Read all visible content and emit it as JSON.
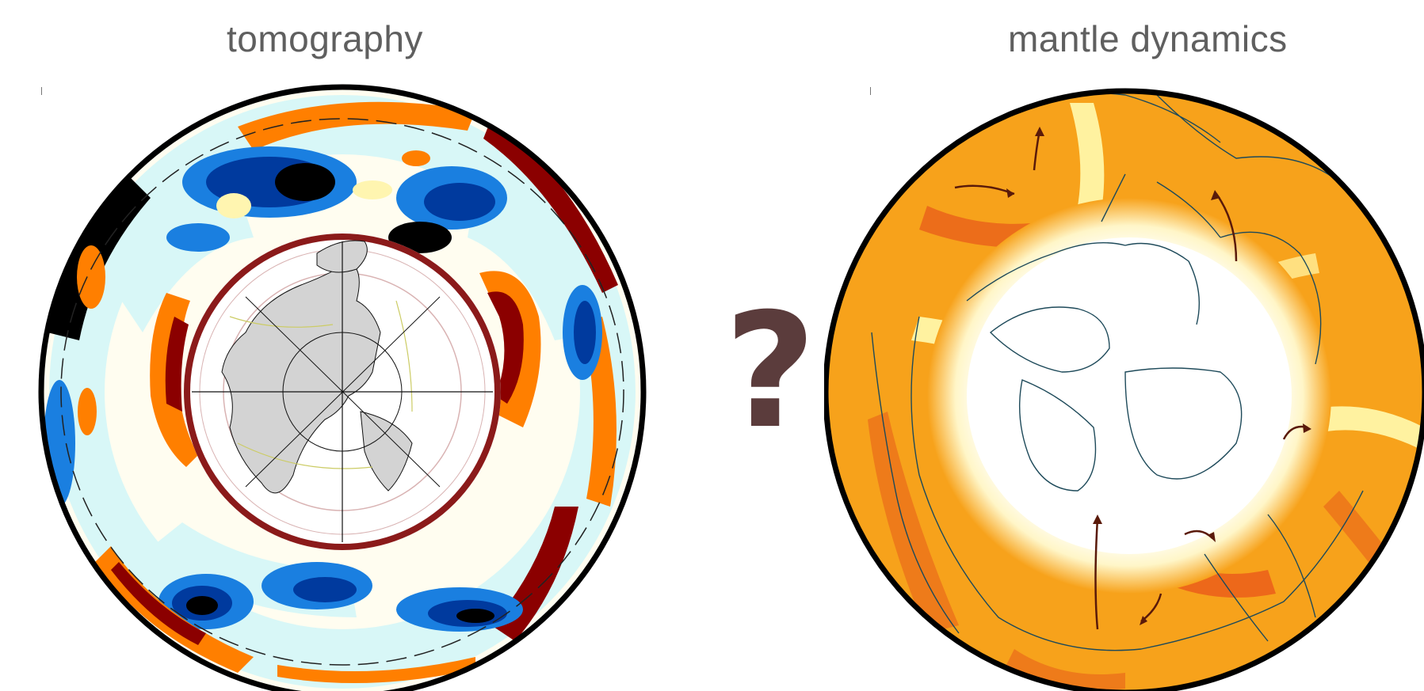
{
  "titles": {
    "left": "tomography",
    "right": "mantle dynamics"
  },
  "center_symbol": "?",
  "colors": {
    "title_text": "#5f5f5f",
    "question_mark": "#5b3c3c",
    "outer_ring_border": "#000000",
    "inner_core_ring": "#8b1a1a",
    "continent_fill": "#d3d3d3",
    "plate_boundaries": "#cccc66",
    "slow_red": "#8b0000",
    "slow_orange": "#ff7f00",
    "fast_blue": "#003a9e",
    "fast_light": "#c8f4f4",
    "dynamics_orange": "#f7a21b",
    "dynamics_red": "#e85a1a",
    "dynamics_hot": "#fff6c8",
    "coastline_dark": "#1e4a5a",
    "arrow_color": "#5a1a0a"
  },
  "icons": [
    "question-mark-icon",
    "flow-arrow-icon"
  ]
}
